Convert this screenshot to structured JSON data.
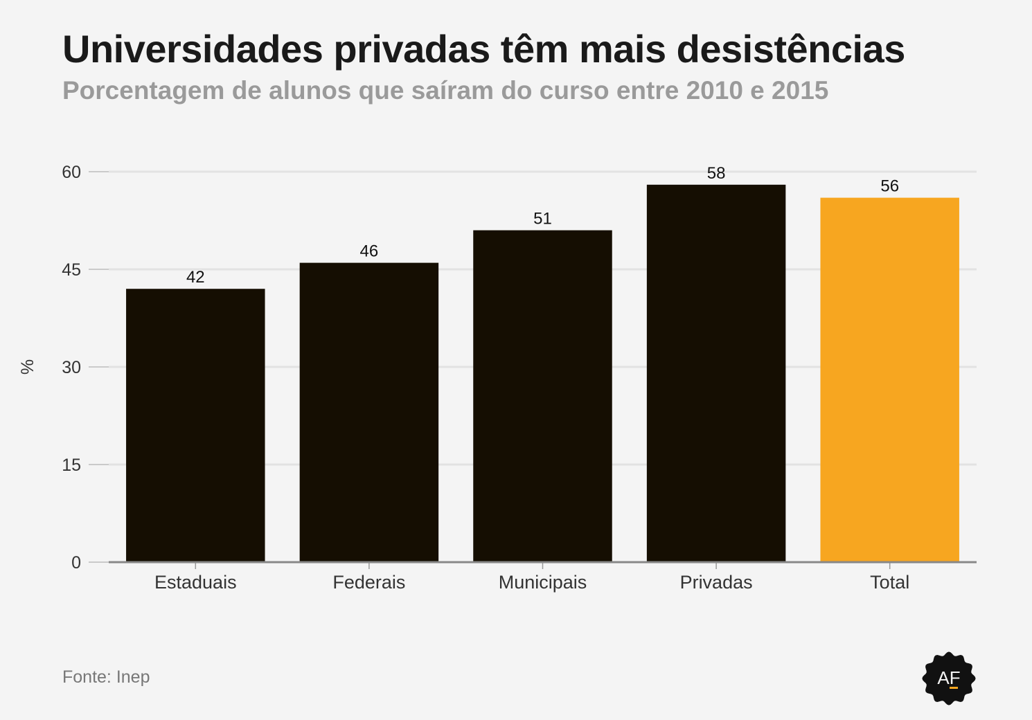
{
  "header": {
    "title": "Universidades privadas têm mais desistências",
    "subtitle": "Porcentagem de alunos que saíram do curso entre 2010 e 2015"
  },
  "footer": {
    "source": "Fonte: Inep",
    "logo_text": "AF"
  },
  "colors": {
    "bar_default": "#150e02",
    "bar_highlight": "#f7a620",
    "grid": "#e2e2e2",
    "axis": "#888888",
    "background": "#f4f4f4"
  },
  "chart_data": {
    "type": "bar",
    "categories": [
      "Estaduais",
      "Federais",
      "Municipais",
      "Privadas",
      "Total"
    ],
    "values": [
      42,
      46,
      51,
      58,
      56
    ],
    "highlight": "Total",
    "title": "Universidades privadas têm mais desistências",
    "subtitle": "Porcentagem de alunos que saíram do curso entre 2010 e 2015",
    "xlabel": "",
    "ylabel": "%",
    "ylim": [
      0,
      60
    ],
    "yticks": [
      0,
      15,
      30,
      45,
      60
    ],
    "grid": true,
    "data_labels": true
  }
}
